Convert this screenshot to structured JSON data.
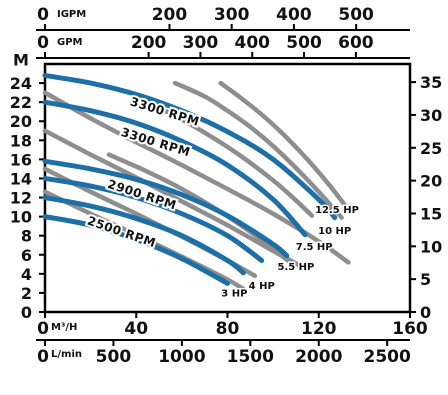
{
  "chart_data": {
    "type": "line",
    "title": "",
    "top_axis_1": {
      "unit": "IGPM",
      "ticks": [
        "0",
        "200",
        "300",
        "400",
        "500"
      ],
      "values": [
        0,
        200,
        300,
        400,
        500
      ]
    },
    "top_axis_2": {
      "unit": "GPM",
      "ticks": [
        "0",
        "200",
        "300",
        "400",
        "500",
        "600"
      ],
      "values": [
        0,
        200,
        300,
        400,
        500,
        600
      ]
    },
    "left_axis": {
      "unit": "M",
      "ticks": [
        "0",
        "2",
        "4",
        "6",
        "8",
        "10",
        "12",
        "14",
        "16",
        "18",
        "20",
        "22",
        "24"
      ],
      "values": [
        0,
        2,
        4,
        6,
        8,
        10,
        12,
        14,
        16,
        18,
        20,
        22,
        24
      ],
      "ylim": [
        0,
        26
      ]
    },
    "right_axis": {
      "unit": "",
      "ticks": [
        "0",
        "5",
        "10",
        "15",
        "20",
        "25",
        "30",
        "35"
      ],
      "values": [
        0,
        5,
        10,
        15,
        20,
        25,
        30,
        35
      ]
    },
    "bottom_axis_1": {
      "unit": "M³/H",
      "ticks": [
        "0",
        "40",
        "80",
        "120",
        "160"
      ],
      "values": [
        0,
        40,
        80,
        120,
        160
      ],
      "xlim": [
        0,
        160
      ]
    },
    "bottom_axis_2": {
      "unit": "L/min",
      "ticks": [
        "0",
        "500",
        "1000",
        "1500",
        "2000",
        "2500"
      ],
      "values": [
        0,
        500,
        1000,
        1500,
        2000,
        2500
      ]
    },
    "series": [
      {
        "name": "12.5 HP",
        "label": "12.5 HP",
        "color": "#1d6fa8",
        "rpm": "3300 RPM",
        "x": [
          0,
          20,
          40,
          60,
          80,
          100,
          120,
          127
        ],
        "y": [
          24.8,
          24.0,
          22.8,
          21.1,
          18.9,
          16.0,
          11.8,
          9.9
        ]
      },
      {
        "name": "10 HP",
        "label": "10 HP",
        "color": "#1d6fa8",
        "rpm": "3300 RPM",
        "x": [
          0,
          20,
          40,
          60,
          80,
          100,
          114
        ],
        "y": [
          22.0,
          21.1,
          19.8,
          17.9,
          15.4,
          11.8,
          8.1
        ]
      },
      {
        "name": "7.5 HP",
        "label": "7.5 HP",
        "color": "#1d6fa8",
        "rpm": "2900 RPM",
        "x": [
          0,
          20,
          40,
          60,
          80,
          100,
          106
        ],
        "y": [
          15.8,
          15.0,
          13.9,
          12.3,
          10.1,
          7.1,
          5.9
        ]
      },
      {
        "name": "5.5 HP",
        "label": "5.5 HP",
        "color": "#1d6fa8",
        "rpm": "2900 RPM",
        "x": [
          0,
          20,
          40,
          60,
          80,
          95
        ],
        "y": [
          14.0,
          13.2,
          12.0,
          10.3,
          8.0,
          5.4
        ]
      },
      {
        "name": "4 HP",
        "label": "4 HP",
        "color": "#1d6fa8",
        "rpm": "2500 RPM",
        "x": [
          0,
          20,
          40,
          60,
          80,
          87
        ],
        "y": [
          12.0,
          11.1,
          9.8,
          8.0,
          5.4,
          4.1
        ]
      },
      {
        "name": "3 HP",
        "label": "3 HP",
        "color": "#1d6fa8",
        "rpm": "2500 RPM",
        "x": [
          0,
          20,
          40,
          60,
          80
        ],
        "y": [
          10.0,
          9.1,
          7.6,
          5.6,
          3.0
        ]
      }
    ],
    "grey_curves": [
      {
        "x": [
          0,
          20,
          40,
          60,
          80,
          100,
          120,
          133
        ],
        "y": [
          23.0,
          20.3,
          17.8,
          15.4,
          12.9,
          10.3,
          7.4,
          5.2
        ]
      },
      {
        "x": [
          0,
          20,
          40,
          60,
          80,
          100,
          113
        ],
        "y": [
          19.0,
          16.5,
          14.1,
          11.6,
          9.1,
          6.4,
          4.7
        ]
      },
      {
        "x": [
          0,
          20,
          40,
          60,
          80,
          92
        ],
        "y": [
          15.0,
          12.6,
          10.3,
          7.9,
          5.4,
          3.8
        ]
      },
      {
        "x": [
          0,
          20,
          40,
          60,
          80,
          87
        ],
        "y": [
          12.6,
          10.3,
          8.1,
          5.8,
          3.4,
          2.4
        ]
      },
      {
        "x": [
          57,
          70,
          80,
          90,
          100,
          110,
          120,
          130
        ],
        "y": [
          24.0,
          22.6,
          21.1,
          19.4,
          17.4,
          15.1,
          12.6,
          9.9
        ]
      },
      {
        "x": [
          77,
          85,
          95,
          105,
          115,
          125,
          133
        ],
        "y": [
          24.0,
          22.6,
          20.7,
          18.5,
          16.0,
          13.2,
          10.7
        ]
      },
      {
        "x": [
          40,
          55,
          70,
          85,
          100,
          110,
          117
        ],
        "y": [
          22.5,
          20.8,
          18.8,
          16.5,
          13.8,
          11.7,
          10.1
        ]
      },
      {
        "x": [
          28,
          45,
          60,
          75,
          90,
          100,
          107
        ],
        "y": [
          16.5,
          14.7,
          12.9,
          10.8,
          8.4,
          6.6,
          5.3
        ]
      }
    ],
    "rpm_labels": [
      "3300 RPM",
      "3300 RPM",
      "2900 RPM",
      "2500 RPM"
    ],
    "hp_labels": [
      "12.5 HP",
      "10 HP",
      "7.5 HP",
      "5.5 HP",
      "4 HP",
      "3 HP"
    ],
    "grid": false,
    "legend": "none"
  }
}
